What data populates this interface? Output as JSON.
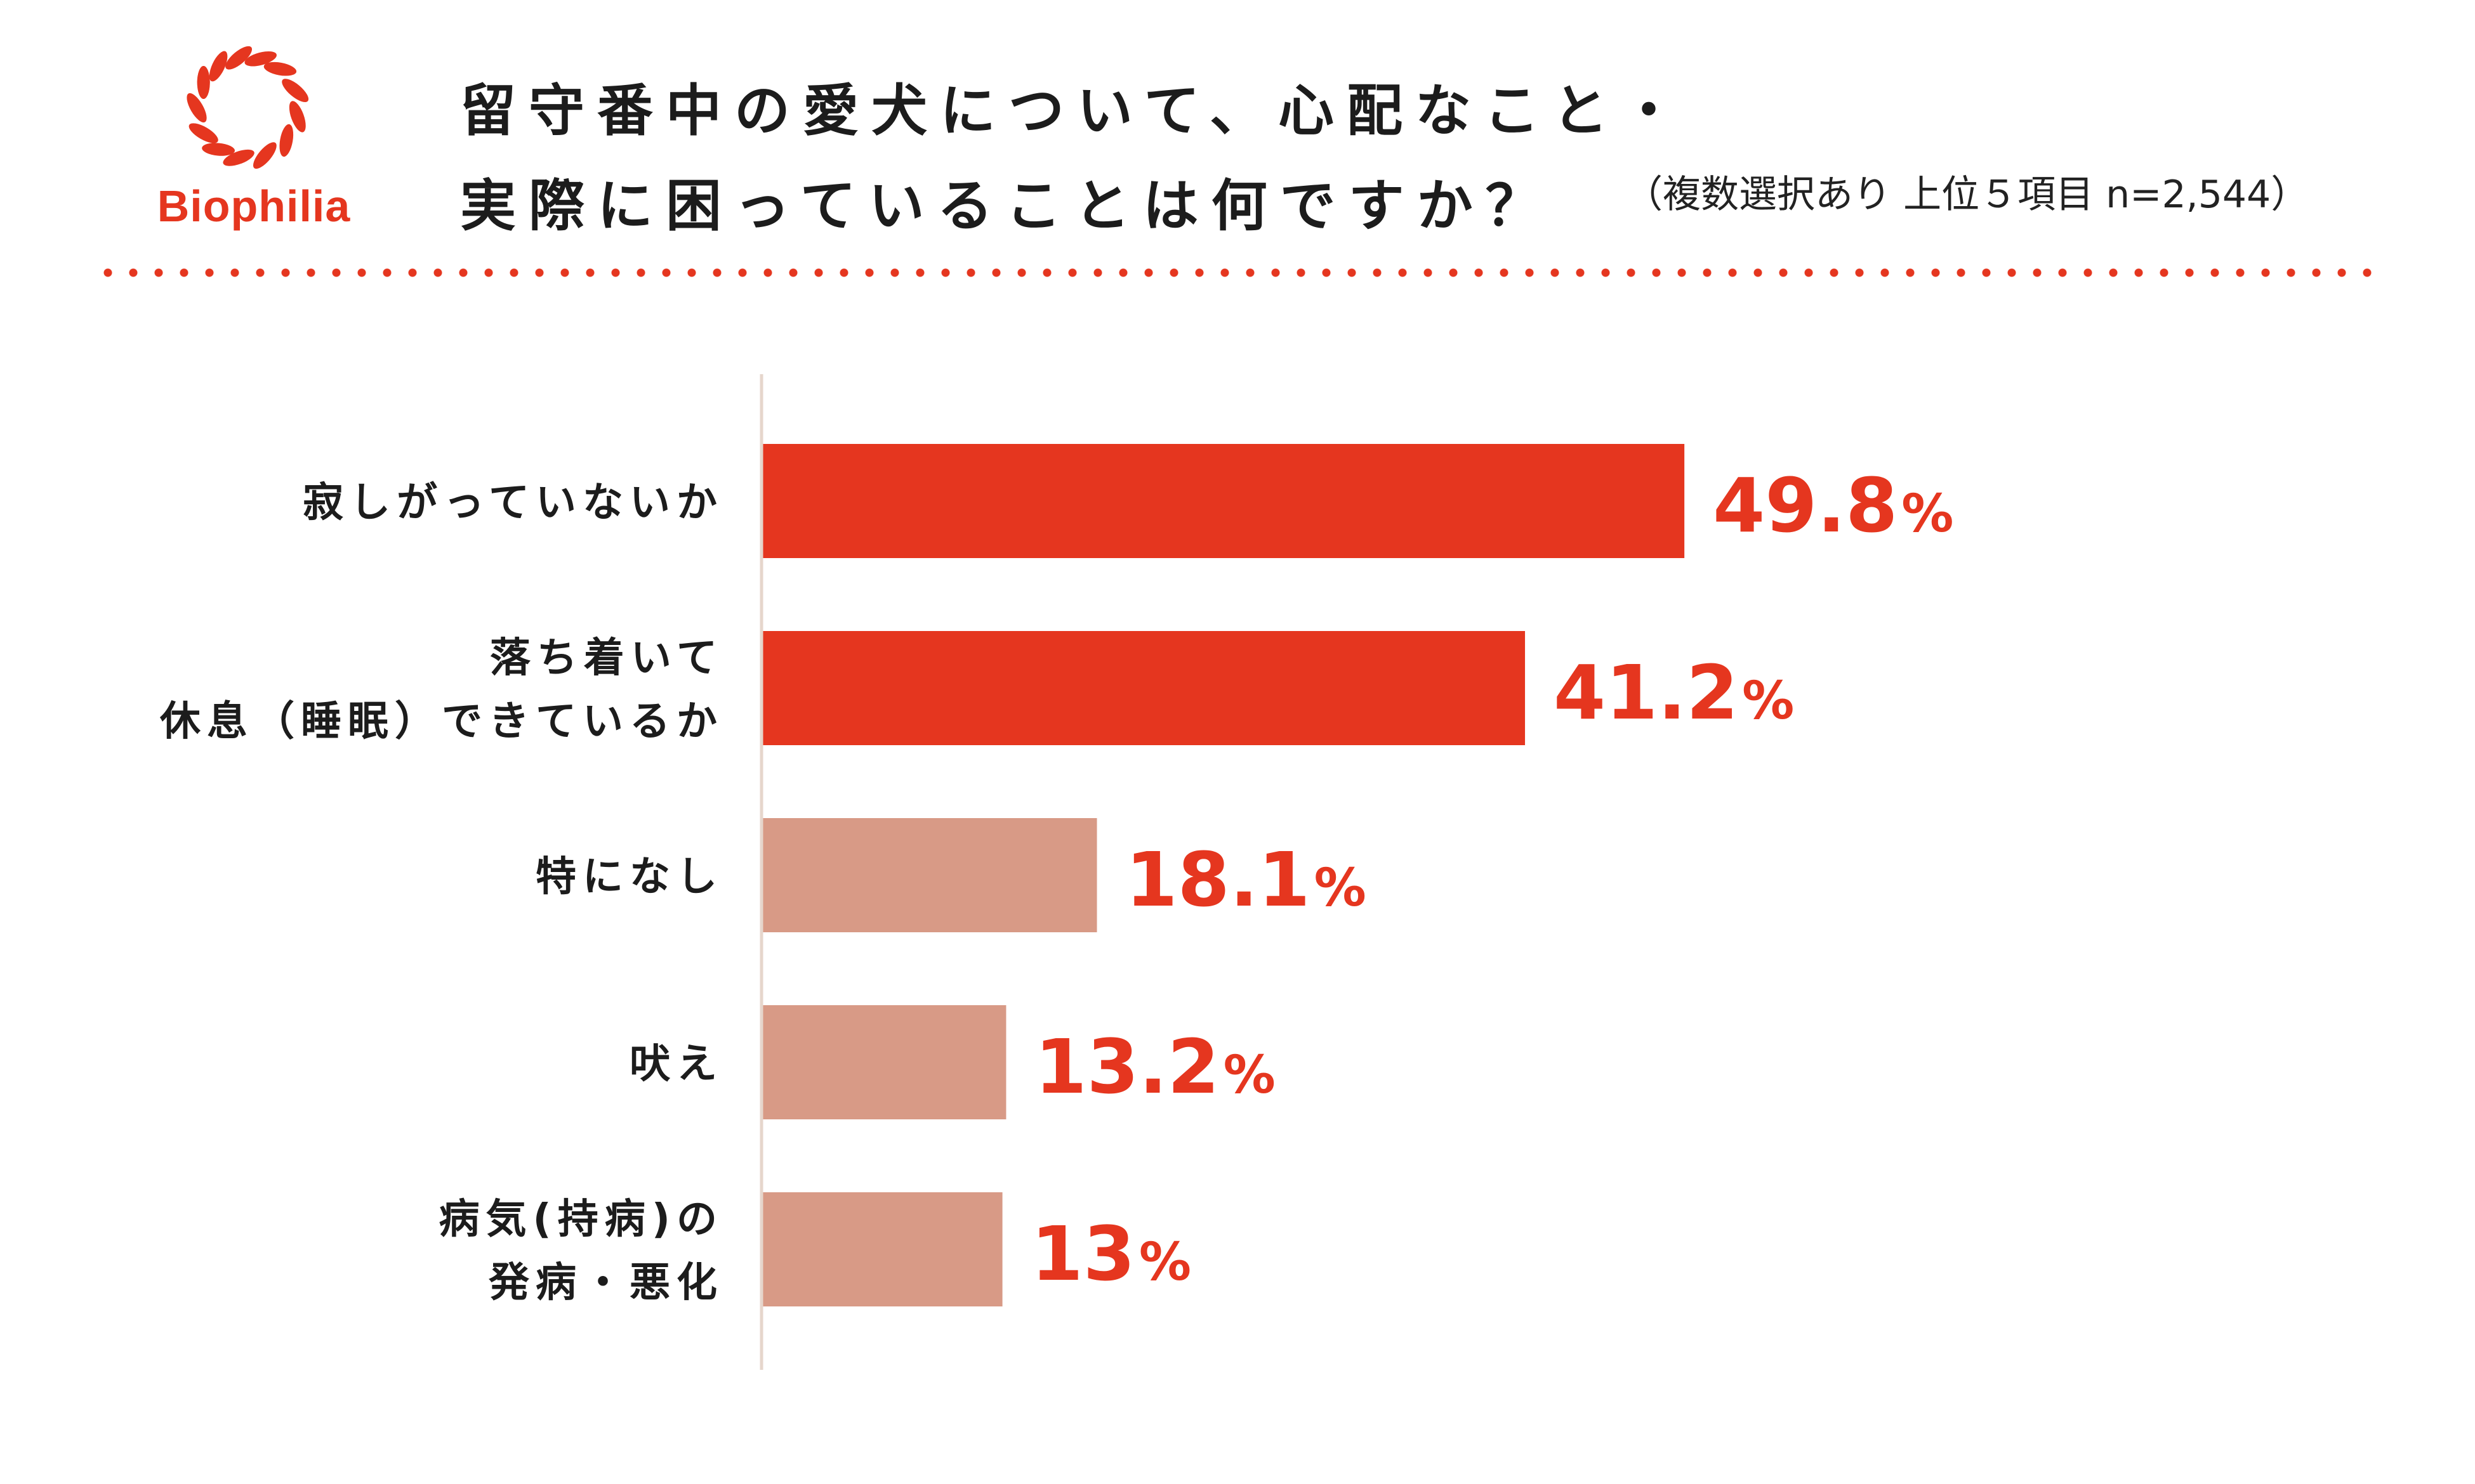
{
  "brand": {
    "name": "Biophilia",
    "color": "#e5361f"
  },
  "header": {
    "title_line1": "留守番中の愛犬について、心配なこと・",
    "title_line2": "実際に困っていることは何ですか？",
    "subtitle": "（複数選択あり 上位５項目 n=2,544）"
  },
  "chart_data": {
    "type": "bar",
    "orientation": "horizontal",
    "categories": [
      [
        "寂しがっていないか"
      ],
      [
        "落ち着いて",
        "休息（睡眠）できているか"
      ],
      [
        "特になし"
      ],
      [
        "吠え"
      ],
      [
        "病気(持病)の",
        "発病・悪化"
      ]
    ],
    "values": [
      49.8,
      41.2,
      18.1,
      13.2,
      13
    ],
    "value_labels": [
      "49.8",
      "41.2",
      "18.1",
      "13.2",
      "13"
    ],
    "unit": "%",
    "bar_colors": [
      "#e5361f",
      "#e5361f",
      "#d89a86",
      "#d89a86",
      "#d89a86"
    ],
    "label_color": "#e5361f",
    "axis_color": "#e6d6cc",
    "xlim": [
      0,
      100
    ],
    "grid": false,
    "legend": "none"
  }
}
